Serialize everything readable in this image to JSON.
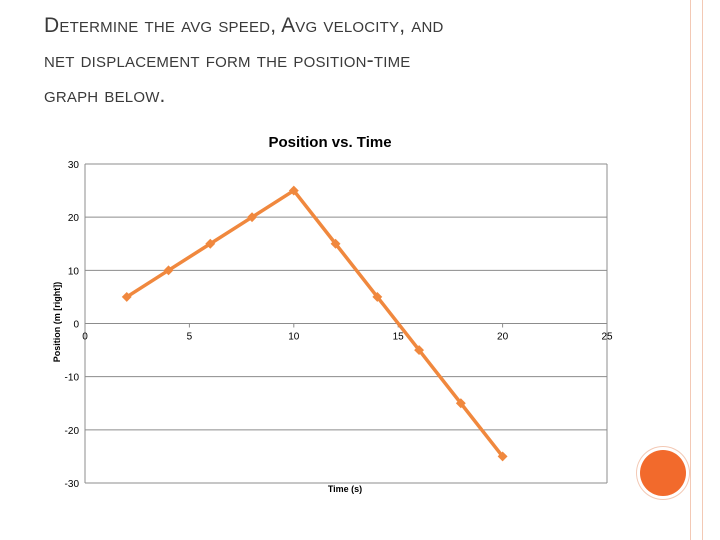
{
  "slide": {
    "title_lines": [
      "Determine the avg speed, Avg velocity, and",
      "net displacement form the position-time",
      "graph below."
    ]
  },
  "chart_data": {
    "type": "line",
    "title": "Position vs. Time",
    "xlabel": "Time (s)",
    "ylabel": "Position (m [right])",
    "xlim": [
      0,
      25
    ],
    "ylim": [
      -30,
      30
    ],
    "xticks": [
      0,
      5,
      10,
      15,
      20,
      25
    ],
    "yticks": [
      30,
      20,
      10,
      0,
      -10,
      -20,
      -30
    ],
    "grid": "horizontal",
    "series": [
      {
        "x": [
          2,
          4,
          6,
          8,
          10,
          12,
          14,
          16,
          18,
          20
        ],
        "y": [
          5,
          10,
          15,
          20,
          25,
          15,
          5,
          -5,
          -15,
          -25
        ],
        "color": "#f0883e"
      }
    ]
  }
}
